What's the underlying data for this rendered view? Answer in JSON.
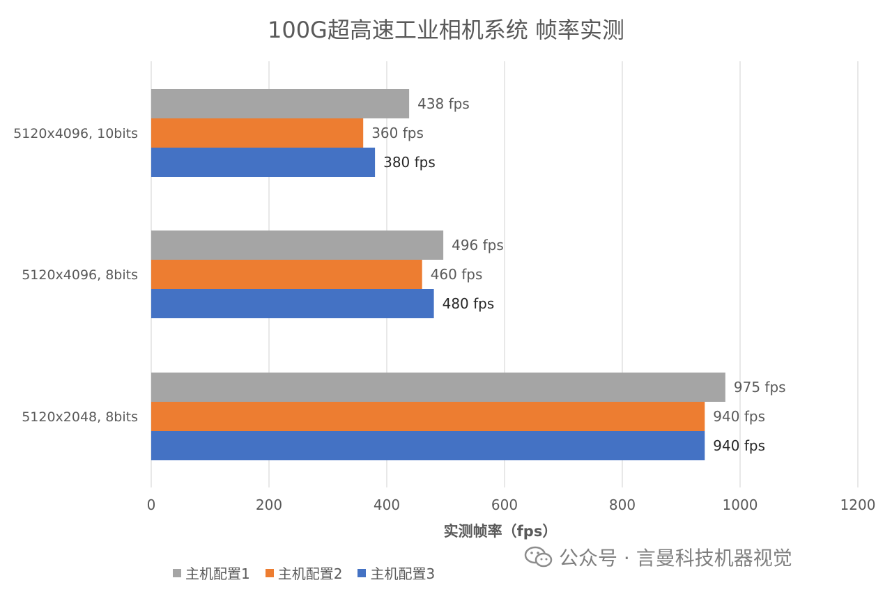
{
  "chart_data": {
    "type": "bar",
    "orientation": "horizontal",
    "title": "100G超高速工业相机系统 帧率实测",
    "xlabel": "实测帧率（fps）",
    "ylabel": "",
    "categories": [
      "5120x4096, 10bits",
      "5120x4096, 8bits",
      "5120x2048, 8bits"
    ],
    "series": [
      {
        "name": "主机配置1",
        "color": "#A5A5A5",
        "values": [
          438,
          496,
          975
        ],
        "labels": [
          "438 fps",
          "496 fps",
          "975 fps"
        ],
        "label_color": "#595959"
      },
      {
        "name": "主机配置2",
        "color": "#ED7D31",
        "values": [
          360,
          460,
          940
        ],
        "labels": [
          "360 fps",
          "460 fps",
          "940 fps"
        ],
        "label_color": "#595959"
      },
      {
        "name": "主机配置3",
        "color": "#4472C4",
        "values": [
          380,
          480,
          940
        ],
        "labels": [
          "380 fps",
          "480 fps",
          "940 fps"
        ],
        "label_color": "#262626"
      }
    ],
    "xlim": [
      0,
      1200
    ],
    "xticks": [
      "0",
      "200",
      "400",
      "600",
      "800",
      "1000",
      "1200"
    ],
    "grid": true,
    "legend": "bottom-left"
  },
  "watermark": {
    "text": "公众号 · 言曼科技机器视觉",
    "icon": "wechat-icon"
  },
  "colors": {
    "gray": "#A5A5A5",
    "orange": "#ED7D31",
    "blue": "#4472C4",
    "grid": "#D9D9D9",
    "text": "#595959"
  }
}
